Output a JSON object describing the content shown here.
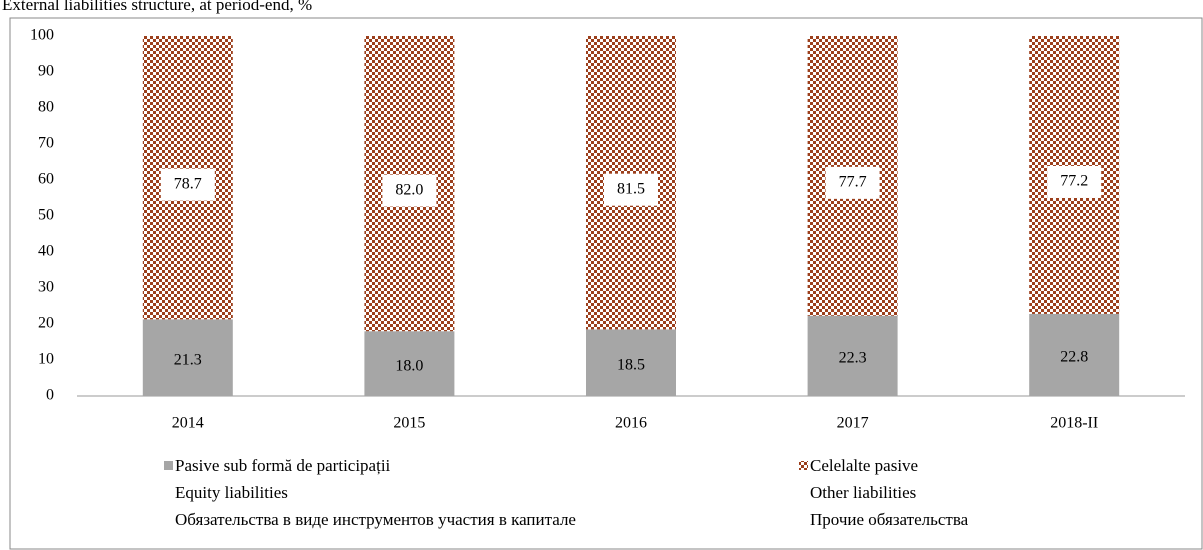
{
  "chart_data": {
    "type": "stacked_bar",
    "title": "External liabilities structure, at period-end, %",
    "categories": [
      "2014",
      "2015",
      "2016",
      "2017",
      "2018-II"
    ],
    "series": [
      {
        "name": "Pasive sub formă de participații",
        "name_en": "Equity liabilities",
        "name_ru": "Обязательства в виде инструментов участия в капитале",
        "color": "#a6a6a6",
        "pattern": false,
        "values": [
          21.3,
          18,
          18.5,
          22.3,
          22.8
        ],
        "value_labels": [
          "21.3",
          "18.0",
          "18.5",
          "22.3",
          "22.8"
        ]
      },
      {
        "name": "Celelalte pasive",
        "name_en": "Other liabilities",
        "name_ru": "Прочие обязательства",
        "color": "#9c3f1c",
        "pattern": true,
        "values": [
          78.7,
          82,
          81.5,
          77.7,
          77.2
        ],
        "value_labels": [
          "78.7",
          "82.0",
          "81.5",
          "77.7",
          "77.2"
        ]
      }
    ],
    "ylim": [
      0,
      100
    ],
    "yticks": [
      0,
      10,
      20,
      30,
      40,
      50,
      60,
      70,
      80,
      90,
      100
    ],
    "grid": false,
    "legend": "bottom"
  }
}
